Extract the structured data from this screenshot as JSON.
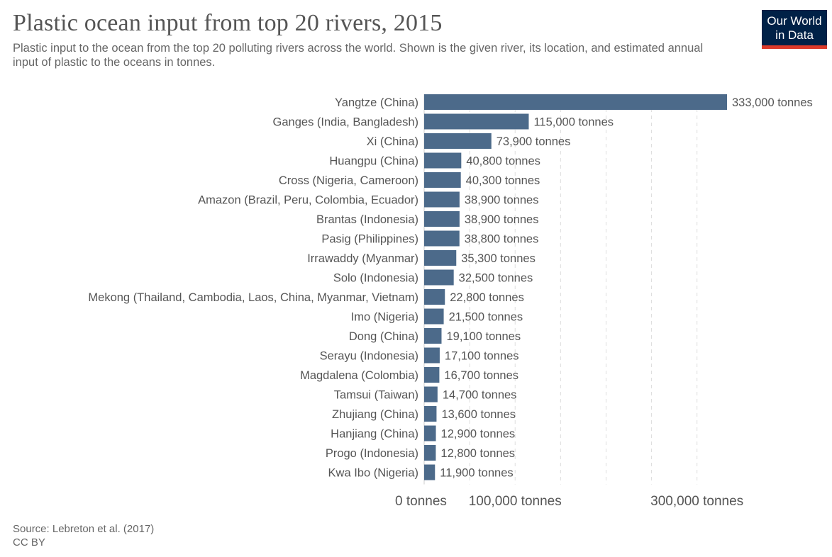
{
  "header": {
    "title": "Plastic ocean input from top 20 rivers, 2015",
    "subtitle": "Plastic input to the ocean from the top 20 polluting rivers across the world. Shown is the given river, its location, and estimated annual input of plastic to the oceans in tonnes.",
    "logo_line1": "Our World",
    "logo_line2": "in Data"
  },
  "footer": {
    "source": "Source: Lebreton et al. (2017)",
    "license": "CC BY"
  },
  "chart_data": {
    "type": "bar",
    "orientation": "horizontal",
    "title": "Plastic ocean input from top 20 rivers, 2015",
    "unit": "tonnes",
    "bar_color": "#4c6a8a",
    "grid": "vertical dashed",
    "xlim": [
      0,
      350000
    ],
    "ticks": [
      {
        "value": 0,
        "label": "0 tonnes"
      },
      {
        "value": 100000,
        "label": "100,000 tonnes"
      },
      {
        "value": 300000,
        "label": "300,000 tonnes"
      }
    ],
    "gridlines": [
      50000,
      100000,
      150000,
      200000,
      250000,
      300000
    ],
    "categories": [
      "Yangtze (China)",
      "Ganges (India, Bangladesh)",
      "Xi (China)",
      "Huangpu (China)",
      "Cross (Nigeria, Cameroon)",
      "Amazon (Brazil, Peru, Colombia, Ecuador)",
      "Brantas (Indonesia)",
      "Pasig (Philippines)",
      "Irrawaddy (Myanmar)",
      "Solo (Indonesia)",
      "Mekong (Thailand, Cambodia, Laos, China, Myanmar, Vietnam)",
      "Imo (Nigeria)",
      "Dong (China)",
      "Serayu (Indonesia)",
      "Magdalena (Colombia)",
      "Tamsui (Taiwan)",
      "Zhujiang (China)",
      "Hanjiang (China)",
      "Progo (Indonesia)",
      "Kwa Ibo (Nigeria)"
    ],
    "values": [
      333000,
      115000,
      73900,
      40800,
      40300,
      38900,
      38900,
      38800,
      35300,
      32500,
      22800,
      21500,
      19100,
      17100,
      16700,
      14700,
      13600,
      12900,
      12800,
      11900
    ],
    "data_labels": [
      "333,000 tonnes",
      "115,000 tonnes",
      "73,900 tonnes",
      "40,800 tonnes",
      "40,300 tonnes",
      "38,900 tonnes",
      "38,900 tonnes",
      "38,800 tonnes",
      "35,300 tonnes",
      "32,500 tonnes",
      "22,800 tonnes",
      "21,500 tonnes",
      "19,100 tonnes",
      "17,100 tonnes",
      "16,700 tonnes",
      "14,700 tonnes",
      "13,600 tonnes",
      "12,900 tonnes",
      "12,800 tonnes",
      "11,900 tonnes"
    ]
  }
}
